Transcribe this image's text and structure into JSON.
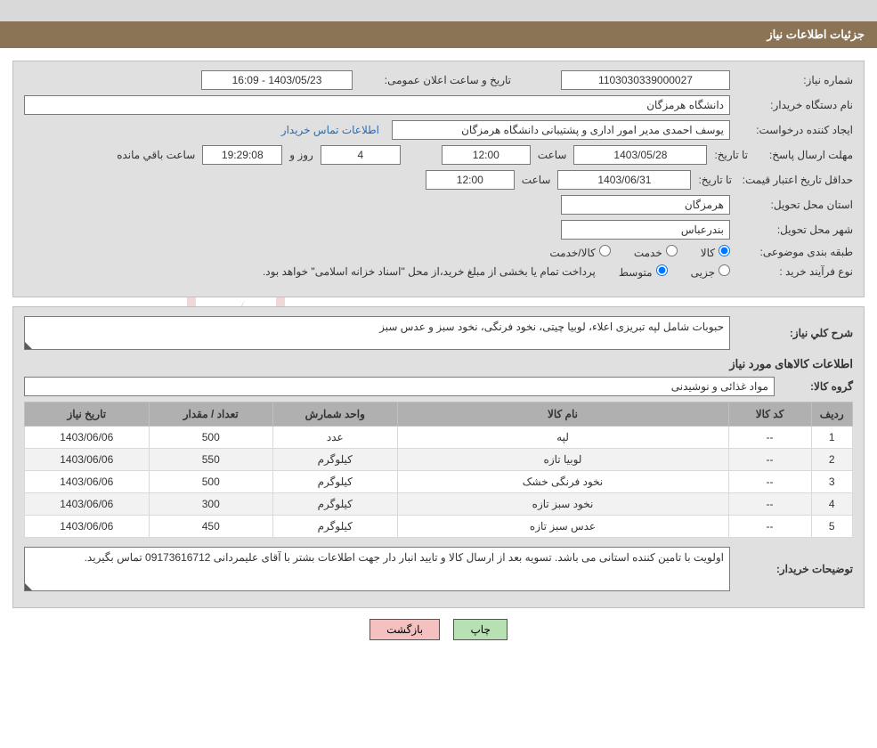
{
  "header_title": "جزئیات اطلاعات نیاز",
  "watermark": "AriaTender.net",
  "fields": {
    "need_no_label": "شماره نیاز:",
    "need_no": "1103030339000027",
    "announce_label": "تاریخ و ساعت اعلان عمومی:",
    "announce": "1403/05/23 - 16:09",
    "buyer_org_label": "نام دستگاه خریدار:",
    "buyer_org": "دانشگاه هرمزگان",
    "requester_label": "ایجاد کننده درخواست:",
    "requester": "یوسف احمدی مدیر امور اداری و پشتیبانی دانشگاه هرمزگان",
    "contact_link": "اطلاعات تماس خریدار",
    "deadline_label": "مهلت ارسال پاسخ:",
    "until_label": "تا تاریخ:",
    "deadline_date": "1403/05/28",
    "time_label": "ساعت",
    "deadline_time": "12:00",
    "remain_days": "4",
    "and_label": "روز و",
    "remain_hms": "19:29:08",
    "remain_suffix": "ساعت باقي مانده",
    "validity_label": "حداقل تاریخ اعتبار قیمت:",
    "validity_date": "1403/06/31",
    "validity_time": "12:00",
    "province_label": "استان محل تحویل:",
    "province": "هرمزگان",
    "city_label": "شهر محل تحویل:",
    "city": "بندرعباس",
    "classify_label": "طبقه بندی موضوعی:",
    "classify_goods": "کالا",
    "classify_service": "خدمت",
    "classify_both": "کالا/خدمت",
    "process_label": "نوع فرآیند خرید :",
    "process_minor": "جزیی",
    "process_medium": "متوسط",
    "process_note": "پرداخت تمام یا بخشی از مبلغ خرید،از محل \"اسناد خزانه اسلامی\" خواهد بود."
  },
  "need": {
    "summary_label": "شرح کلي نیاز:",
    "summary": "حبوبات شامل لپه تبریزی اعلاء، لوبیا چیتی، نخود فرنگی، نخود سبز و عدس سبز",
    "items_title": "اطلاعات کالاهای مورد نیاز",
    "group_label": "گروه کالا:",
    "group": "مواد غذائی و نوشیدنی",
    "buyer_notes_label": "توضیحات خریدار:",
    "buyer_notes": "اولویت با تامین کننده استانی می باشد. تسویه بعد از ارسال کالا و تایید انبار دار جهت اطلاعات بشتر با آقای علیمردانی 09173616712 تماس بگیرید."
  },
  "table": {
    "columns": [
      "ردیف",
      "کد کالا",
      "نام کالا",
      "واحد شمارش",
      "تعداد / مقدار",
      "تاریخ نیاز"
    ],
    "col_widths": [
      "5%",
      "10%",
      "40%",
      "15%",
      "15%",
      "15%"
    ],
    "rows": [
      [
        "1",
        "--",
        "لپه",
        "عدد",
        "500",
        "1403/06/06"
      ],
      [
        "2",
        "--",
        "لوبیا تازه",
        "کیلوگرم",
        "550",
        "1403/06/06"
      ],
      [
        "3",
        "--",
        "نخود فرنگی خشک",
        "کیلوگرم",
        "500",
        "1403/06/06"
      ],
      [
        "4",
        "--",
        "نخود سبز تازه",
        "کیلوگرم",
        "300",
        "1403/06/06"
      ],
      [
        "5",
        "--",
        "عدس سبز تازه",
        "کیلوگرم",
        "450",
        "1403/06/06"
      ]
    ]
  },
  "buttons": {
    "print": "چاپ",
    "back": "بازگشت"
  },
  "colors": {
    "header_bg": "#8b7355",
    "panel_bg": "#e0e0e0",
    "link": "#2b6cb0",
    "btn_green": "#b7e0b3",
    "btn_pink": "#f4c0c0",
    "th_bg": "#b0b0b0"
  }
}
